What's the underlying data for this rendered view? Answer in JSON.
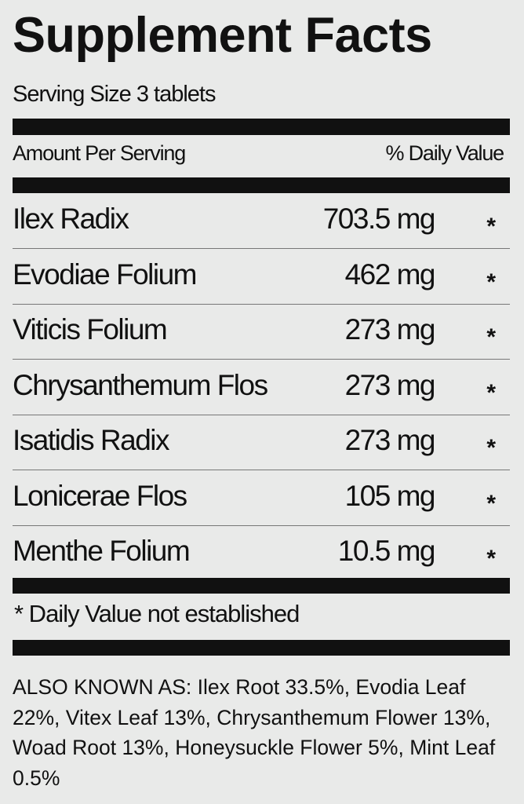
{
  "title": "Supplement Facts",
  "serving_size": "Serving Size 3 tablets",
  "header": {
    "amount": "Amount Per Serving",
    "daily_value": "% Daily Value"
  },
  "rows": [
    {
      "name": "Ilex Radix",
      "amount": "703.5 mg",
      "dv": "*"
    },
    {
      "name": "Evodiae Folium",
      "amount": "462 mg",
      "dv": "*"
    },
    {
      "name": "Viticis Folium",
      "amount": "273 mg",
      "dv": "*"
    },
    {
      "name": "Chrysanthemum Flos",
      "amount": "273 mg",
      "dv": "*"
    },
    {
      "name": "Isatidis Radix",
      "amount": "273 mg",
      "dv": "*"
    },
    {
      "name": "Lonicerae Flos",
      "amount": "105 mg",
      "dv": "*"
    },
    {
      "name": "Menthe Folium",
      "amount": "10.5 mg",
      "dv": "*"
    }
  ],
  "footnote": "* Daily Value not established",
  "also_known_as": "ALSO KNOWN AS: Ilex Root 33.5%, Evodia Leaf  22%, Vitex Leaf 13%, Chrysanthemum Flower  13%, Woad Root 13%, Honeysuckle Flower 5%, Mint Leaf 0.5%"
}
